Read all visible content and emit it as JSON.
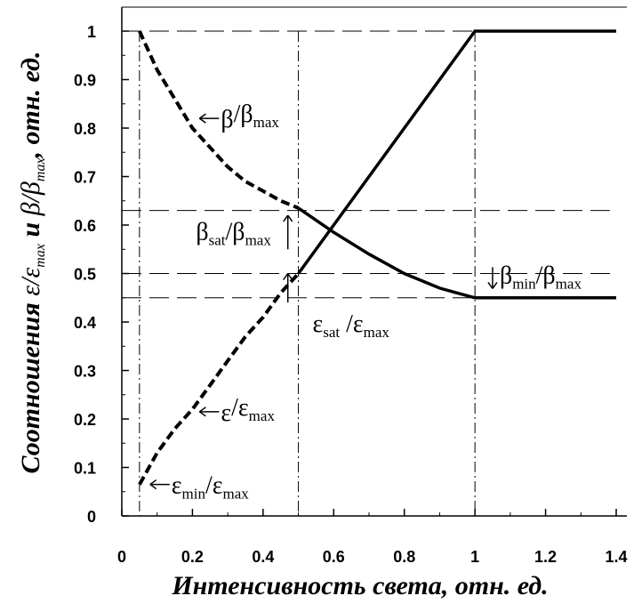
{
  "chart_data": {
    "type": "line",
    "xlabel": "Интенсивность света, отн. ед.",
    "ylabel": {
      "prefix": "Соотношения",
      "eps": "ε",
      "eps_sub": "max",
      "and": "и",
      "beta": "β",
      "beta_sub": "max",
      "suffix": "отн. ед."
    },
    "xlim": [
      0,
      1.4
    ],
    "ylim": [
      0,
      1
    ],
    "x_ticks": [
      "0",
      "0.2",
      "0.4",
      "0.6",
      "0.8",
      "1",
      "1.2",
      "1.4"
    ],
    "y_ticks": [
      "0",
      "0.1",
      "0.2",
      "0.3",
      "0.4",
      "0.5",
      "0.6",
      "0.7",
      "0.8",
      "0.9",
      "1"
    ],
    "series": [
      {
        "label": "β/βmax",
        "color": "#000000",
        "points": [
          [
            0.05,
            1.0
          ],
          [
            0.1,
            0.92
          ],
          [
            0.15,
            0.86
          ],
          [
            0.2,
            0.8
          ],
          [
            0.25,
            0.76
          ],
          [
            0.3,
            0.72
          ],
          [
            0.35,
            0.69
          ],
          [
            0.4,
            0.67
          ],
          [
            0.45,
            0.65
          ],
          [
            0.5,
            0.635
          ],
          [
            0.6,
            0.585
          ],
          [
            0.7,
            0.54
          ],
          [
            0.8,
            0.5
          ],
          [
            0.9,
            0.47
          ],
          [
            1.0,
            0.45
          ],
          [
            1.4,
            0.45
          ]
        ],
        "dash_until_x": 0.5
      },
      {
        "label": "ε/εmax",
        "color": "#000000",
        "points": [
          [
            0.05,
            0.065
          ],
          [
            0.1,
            0.13
          ],
          [
            0.15,
            0.18
          ],
          [
            0.2,
            0.22
          ],
          [
            0.25,
            0.27
          ],
          [
            0.3,
            0.32
          ],
          [
            0.35,
            0.37
          ],
          [
            0.4,
            0.41
          ],
          [
            0.45,
            0.46
          ],
          [
            0.5,
            0.5
          ],
          [
            0.6,
            0.6
          ],
          [
            0.7,
            0.7
          ],
          [
            0.8,
            0.8
          ],
          [
            0.9,
            0.9
          ],
          [
            1.0,
            1.0
          ],
          [
            1.4,
            1.0
          ]
        ],
        "dash_until_x": 0.5
      }
    ],
    "reference_lines": {
      "vertical_x": [
        0.05,
        0.5,
        1.0
      ],
      "horizontal_y": [
        1.0,
        0.63,
        0.5,
        0.45
      ]
    },
    "annotations": [
      {
        "main": "β",
        "sub": "",
        "main2": "/β",
        "sub2": "max",
        "at": [
          0.22,
          0.82
        ],
        "arrow": "left"
      },
      {
        "main": "β",
        "sub": "sat",
        "main2": "/β",
        "sub2": "max",
        "at": [
          0.21,
          0.57
        ],
        "arrow": "up"
      },
      {
        "main": "ε",
        "sub": "sat",
        "main2": " /ε",
        "sub2": "max",
        "at": [
          0.54,
          0.38
        ],
        "arrow": "up"
      },
      {
        "main": "β",
        "sub": "min",
        "main2": "/β",
        "sub2": "max",
        "at": [
          1.07,
          0.48
        ],
        "arrow": "down"
      },
      {
        "main": "ε",
        "sub": "",
        "main2": "/ε",
        "sub2": "max",
        "at": [
          0.22,
          0.215
        ],
        "arrow": "left"
      },
      {
        "main": "ε",
        "sub": "min",
        "main2": "/ε",
        "sub2": "max",
        "at": [
          0.08,
          0.065
        ],
        "arrow": "left"
      }
    ]
  }
}
